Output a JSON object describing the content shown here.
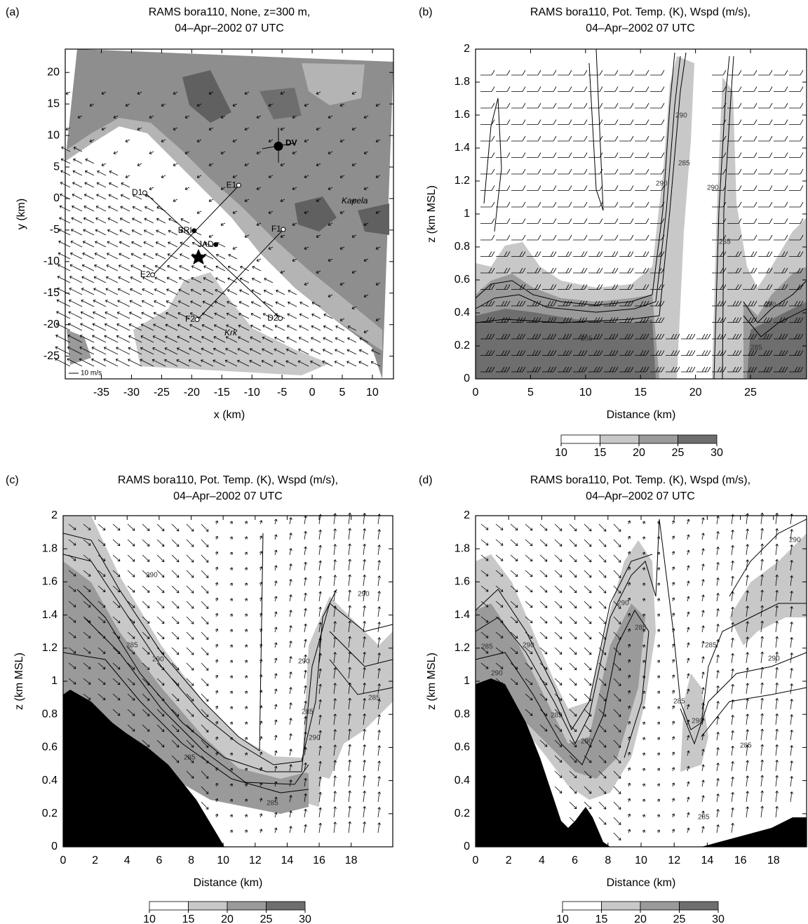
{
  "chart_data": [
    {
      "type": "map",
      "panel_label": "(a)",
      "title": [
        "RAMS bora110, None, z=300 m,",
        "04–Apr–2002 07 UTC"
      ],
      "x_label": "x (km)",
      "y_label": "y (km)",
      "xlim": [
        -41,
        13.5
      ],
      "ylim": [
        -28.6,
        23.7
      ],
      "xticks": [
        -35,
        -30,
        -25,
        -20,
        -15,
        -10,
        -5,
        0,
        5,
        10
      ],
      "yticks": [
        -25,
        -20,
        -15,
        -10,
        -5,
        0,
        5,
        10,
        15,
        20
      ],
      "stations": [
        {
          "label": "DV",
          "x": -5.6,
          "y": 8.3,
          "marker": "filled"
        },
        {
          "label": "E1",
          "x": -12.2,
          "y": 2.1,
          "marker": "open"
        },
        {
          "label": "D1",
          "x": -27.8,
          "y": 0.9,
          "marker": "open"
        },
        {
          "label": "BRI",
          "x": -19.6,
          "y": -5.1,
          "marker": "filled"
        },
        {
          "label": "JAD",
          "x": -16,
          "y": -7.3,
          "marker": "filled"
        },
        {
          "label": "F1",
          "x": -4.8,
          "y": -4.9,
          "marker": "open"
        },
        {
          "label": "E2",
          "x": -26.5,
          "y": -12.1,
          "marker": "open"
        },
        {
          "label": "F2",
          "x": -19.1,
          "y": -19.2,
          "marker": "open"
        },
        {
          "label": "D2",
          "x": -5.3,
          "y": -19,
          "marker": "open"
        }
      ],
      "annotations": [
        "Kapela",
        "Krk"
      ],
      "vector_scale_label": "10 m/s"
    },
    {
      "type": "cross-section",
      "panel_label": "(b)",
      "title": [
        "RAMS bora110, Pot. Temp. (K), Wspd (m/s),",
        "04–Apr–2002 07 UTC"
      ],
      "x_label": "Distance (km)",
      "y_label": "z (km MSL)",
      "xlim": [
        0,
        30.1
      ],
      "ylim": [
        0,
        2
      ],
      "xticks": [
        0,
        5,
        10,
        15,
        20,
        25
      ],
      "yticks": [
        0,
        0.2,
        0.4,
        0.6,
        0.8,
        1,
        1.2,
        1.4,
        1.6,
        1.8,
        2
      ],
      "contour_labels": [
        290,
        285,
        290,
        285,
        290,
        285,
        290,
        285
      ],
      "colorbar": {
        "ticks": [
          10,
          15,
          20,
          25,
          30
        ],
        "colors": [
          "#ffffff",
          "#c8c8c8",
          "#9a9a9a",
          "#6e6e6e"
        ]
      }
    },
    {
      "type": "cross-section",
      "panel_label": "(c)",
      "title": [
        "RAMS bora110, Pot. Temp. (K), Wspd (m/s),",
        "04–Apr–2002 07 UTC"
      ],
      "x_label": "Distance (km)",
      "y_label": "z (km MSL)",
      "xlim": [
        0,
        20.6
      ],
      "ylim": [
        0,
        2
      ],
      "xticks": [
        0,
        2,
        4,
        6,
        8,
        10,
        12,
        14,
        16,
        18
      ],
      "yticks": [
        0,
        0.2,
        0.4,
        0.6,
        0.8,
        1,
        1.2,
        1.4,
        1.6,
        1.8,
        2
      ],
      "contour_labels": [
        290,
        285,
        290,
        285,
        290,
        285,
        290,
        290,
        285,
        285
      ],
      "colorbar": {
        "ticks": [
          10,
          15,
          20,
          25,
          30
        ],
        "colors": [
          "#ffffff",
          "#c8c8c8",
          "#9a9a9a",
          "#6e6e6e"
        ]
      }
    },
    {
      "type": "cross-section",
      "panel_label": "(d)",
      "title": [
        "RAMS bora110, Pot. Temp. (K), Wspd (m/s),",
        "04–Apr–2002 07 UTC"
      ],
      "x_label": "Distance (km)",
      "y_label": "z (km MSL)",
      "xlim": [
        0,
        20
      ],
      "ylim": [
        0,
        2
      ],
      "xticks": [
        0,
        2,
        4,
        6,
        8,
        10,
        12,
        14,
        16,
        18
      ],
      "yticks": [
        0,
        0.2,
        0.4,
        0.6,
        0.8,
        1,
        1.2,
        1.4,
        1.6,
        1.8,
        2
      ],
      "contour_labels": [
        290,
        285,
        290,
        285,
        290,
        285,
        290,
        290,
        285,
        285,
        285,
        290,
        290,
        285
      ],
      "colorbar": {
        "ticks": [
          10,
          15,
          20,
          25,
          30
        ],
        "colors": [
          "#ffffff",
          "#c8c8c8",
          "#9a9a9a",
          "#6e6e6e"
        ]
      }
    }
  ]
}
